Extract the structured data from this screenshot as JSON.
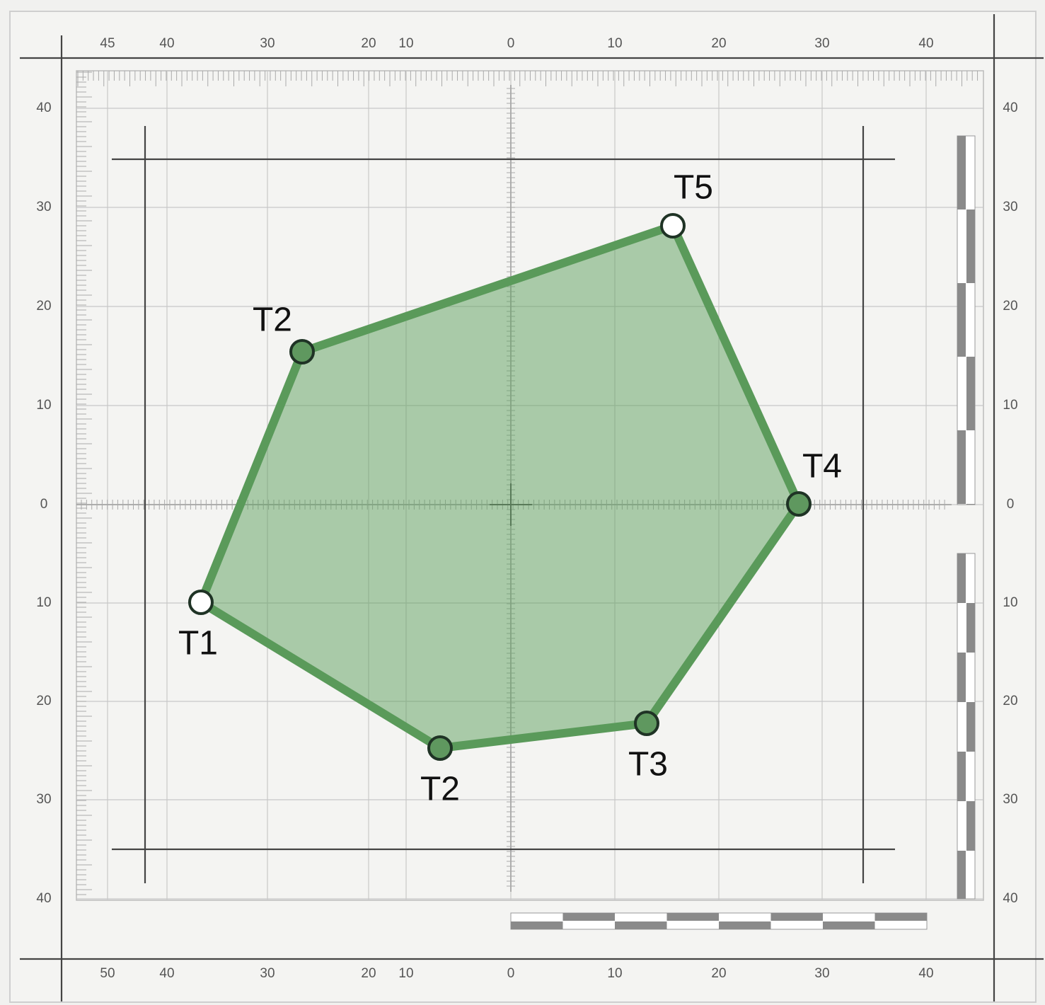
{
  "top_axis": {
    "labels": [
      "45",
      "40",
      "30",
      "20",
      "10",
      "0",
      "10",
      "20",
      "30",
      "40"
    ]
  },
  "bottom_axis": {
    "labels": [
      "50",
      "40",
      "30",
      "20",
      "10",
      "0",
      "10",
      "20",
      "30",
      "40"
    ]
  },
  "left_axis": {
    "labels": [
      "40",
      "30",
      "20",
      "10",
      "0",
      "10",
      "20",
      "30",
      "40"
    ]
  },
  "right_axis": {
    "labels": [
      "40",
      "30",
      "20",
      "10",
      "0",
      "10",
      "20",
      "30",
      "40"
    ]
  },
  "points": [
    {
      "label": "T1"
    },
    {
      "label": "T2"
    },
    {
      "label": "T5"
    },
    {
      "label": "T4"
    },
    {
      "label": "T3"
    },
    {
      "label": "T2"
    }
  ]
}
